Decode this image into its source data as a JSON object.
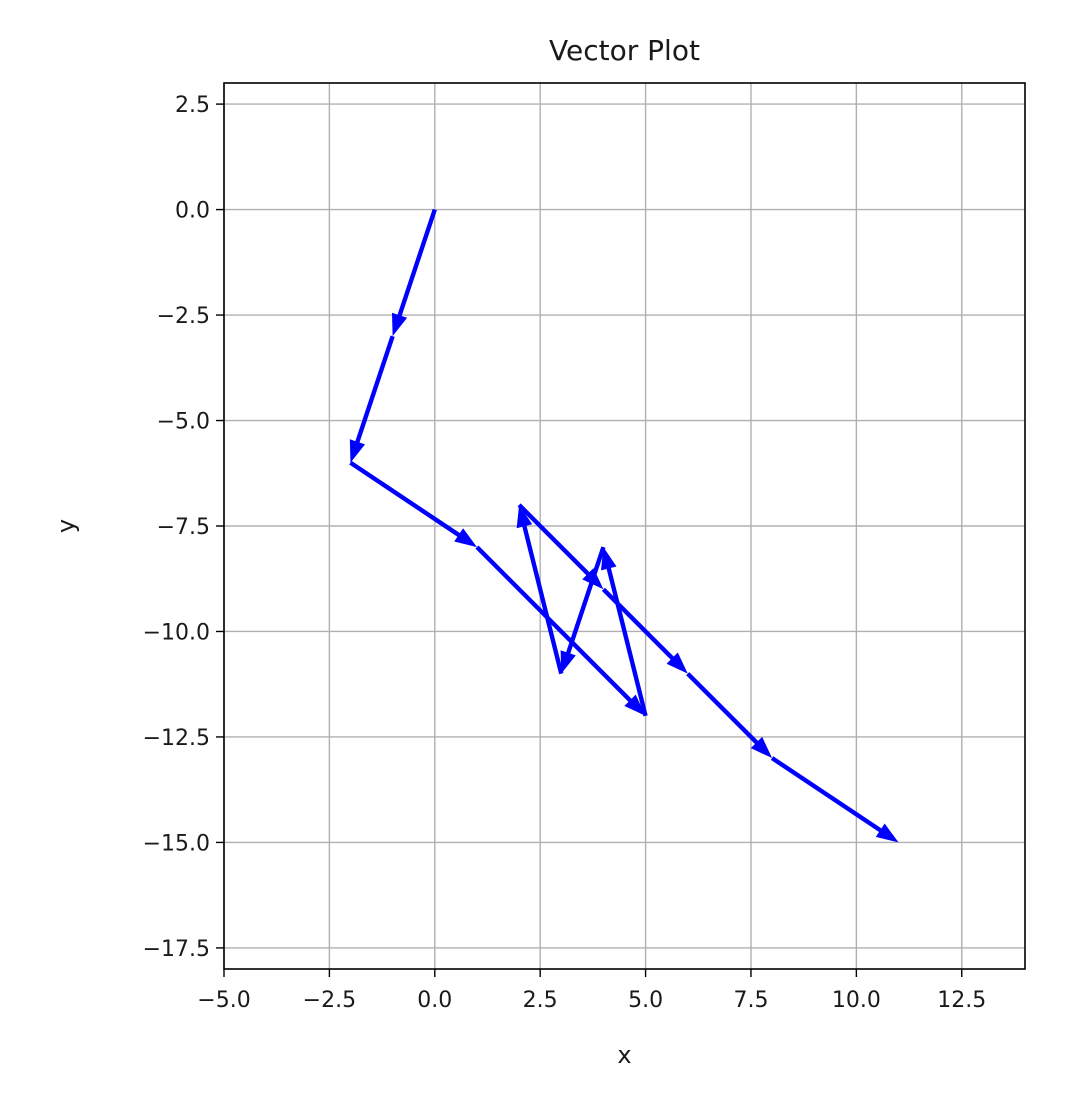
{
  "chart_data": {
    "type": "quiver",
    "title": "Vector Plot",
    "xlabel": "x",
    "ylabel": "y",
    "xlim": [
      -5.0,
      14.0
    ],
    "ylim": [
      -18.0,
      3.0
    ],
    "x_ticks": [
      -5.0,
      -2.5,
      0.0,
      2.5,
      5.0,
      7.5,
      10.0,
      12.5
    ],
    "y_ticks": [
      2.5,
      0.0,
      -2.5,
      -5.0,
      -7.5,
      -10.0,
      -12.5,
      -15.0,
      -17.5
    ],
    "x_tick_labels": [
      "−5.0",
      "−2.5",
      "0.0",
      "2.5",
      "5.0",
      "7.5",
      "10.0",
      "12.5"
    ],
    "y_tick_labels": [
      "2.5",
      "0.0",
      "−2.5",
      "−5.0",
      "−7.5",
      "−10.0",
      "−12.5",
      "−15.0",
      "−17.5"
    ],
    "grid": true,
    "color": "#0000ff",
    "vectors": [
      {
        "x0": 0,
        "y0": 0,
        "x1": -1,
        "y1": -3
      },
      {
        "x0": -1,
        "y0": -3,
        "x1": -2,
        "y1": -6
      },
      {
        "x0": -2,
        "y0": -6,
        "x1": 1,
        "y1": -8
      },
      {
        "x0": 1,
        "y0": -8,
        "x1": 5,
        "y1": -12
      },
      {
        "x0": 5,
        "y0": -12,
        "x1": 4,
        "y1": -8
      },
      {
        "x0": 4,
        "y0": -8,
        "x1": 3,
        "y1": -11
      },
      {
        "x0": 3,
        "y0": -11,
        "x1": 2,
        "y1": -7
      },
      {
        "x0": 2,
        "y0": -7,
        "x1": 4,
        "y1": -9
      },
      {
        "x0": 4,
        "y0": -9,
        "x1": 6,
        "y1": -11
      },
      {
        "x0": 6,
        "y0": -11,
        "x1": 8,
        "y1": -13
      },
      {
        "x0": 8,
        "y0": -13,
        "x1": 11,
        "y1": -15
      }
    ]
  }
}
